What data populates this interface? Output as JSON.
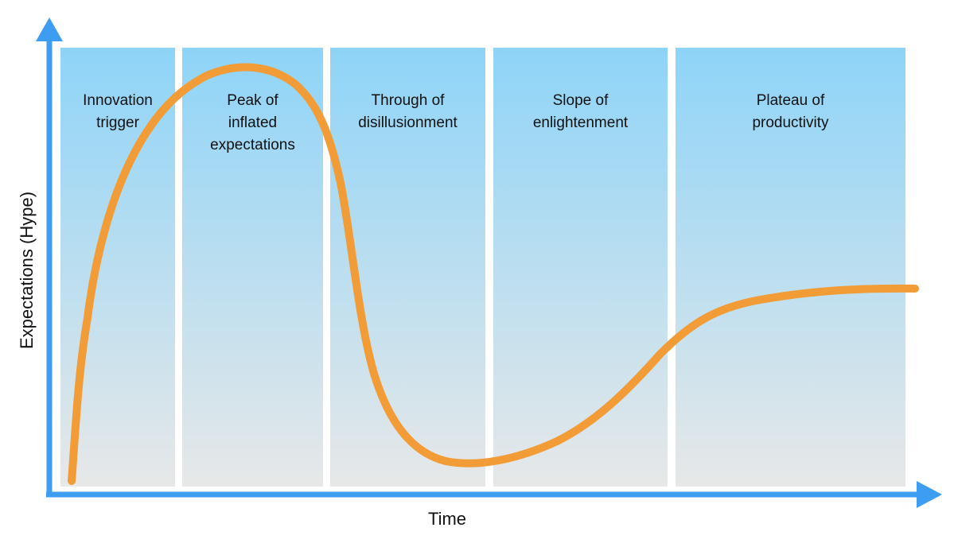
{
  "y_axis_label": "Expectations (Hype)",
  "x_axis_label": "Time",
  "phases": [
    [
      "Innovation",
      "trigger"
    ],
    [
      "Peak of",
      "inflated",
      "expectations"
    ],
    [
      "Through of",
      "disillusionment"
    ],
    [
      "Slope of",
      "enlightenment"
    ],
    [
      "Plateau of",
      "productivity"
    ]
  ]
}
